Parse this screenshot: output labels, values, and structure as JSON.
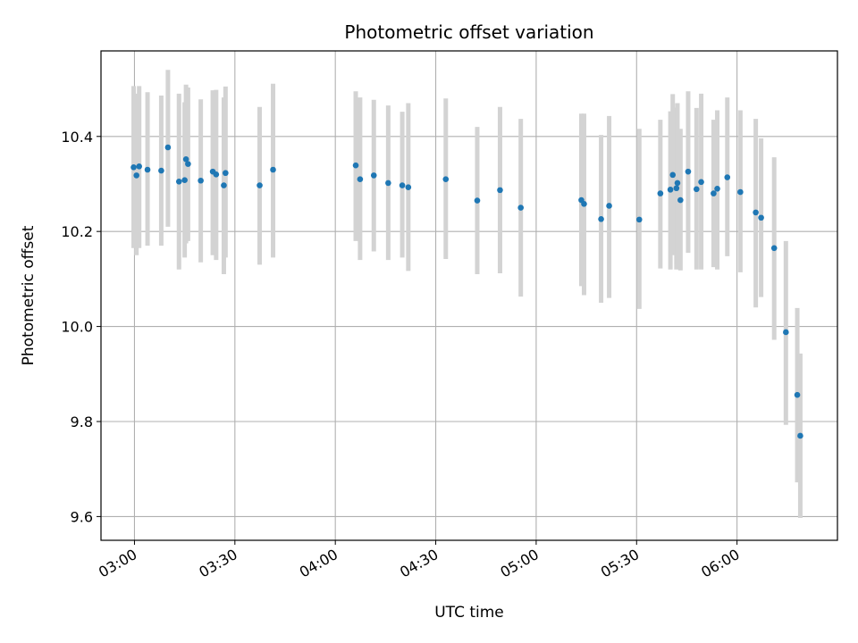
{
  "chart_data": {
    "type": "scatter",
    "title": "Photometric offset variation",
    "xlabel": "UTC time",
    "ylabel": "Photometric offset",
    "x_unit": "UTC time (HH:MM)",
    "xlim": [
      "02:50",
      "06:30"
    ],
    "ylim": [
      9.55,
      10.58
    ],
    "x_ticks": [
      "03:00",
      "03:30",
      "04:00",
      "04:30",
      "05:00",
      "05:30",
      "06:00"
    ],
    "y_ticks": [
      "9.6",
      "9.8",
      "10.0",
      "10.2",
      "10.4"
    ],
    "grid": true,
    "errorbar_color": "#d3d3d3",
    "marker_color": "#1f77b4",
    "series": [
      {
        "x": [
          "02:59:45",
          "03:00:36",
          "03:01:24",
          "03:03:54",
          "03:08:00",
          "03:10:00",
          "03:13:18",
          "03:15:00",
          "03:15:24",
          "03:16:00",
          "03:19:48",
          "03:23:24",
          "03:24:24",
          "03:26:42",
          "03:27:12",
          "03:37:24",
          "03:41:24",
          "04:06:06",
          "04:07:24",
          "04:11:30",
          "04:15:48",
          "04:20:00",
          "04:21:48",
          "04:33:00",
          "04:42:24",
          "04:49:12",
          "04:55:24",
          "05:13:30",
          "05:14:18",
          "05:19:24",
          "05:21:48",
          "05:30:48",
          "05:37:06",
          "05:40:06",
          "05:40:48",
          "05:41:54",
          "05:42:12",
          "05:43:06",
          "05:45:24",
          "05:47:54",
          "05:49:18",
          "05:53:00",
          "05:54:06",
          "05:57:06",
          "06:01:00",
          "06:05:36",
          "06:07:12",
          "06:11:06",
          "06:14:36",
          "06:18:00",
          "06:18:54"
        ],
        "y": [
          10.335,
          10.318,
          10.337,
          10.33,
          10.328,
          10.377,
          10.305,
          10.308,
          10.352,
          10.342,
          10.307,
          10.326,
          10.32,
          10.297,
          10.323,
          10.297,
          10.33,
          10.339,
          10.31,
          10.318,
          10.302,
          10.297,
          10.293,
          10.31,
          10.265,
          10.287,
          10.25,
          10.266,
          10.258,
          10.226,
          10.254,
          10.225,
          10.28,
          10.288,
          10.319,
          10.291,
          10.302,
          10.266,
          10.326,
          10.289,
          10.304,
          10.28,
          10.29,
          10.314,
          10.283,
          10.24,
          10.229,
          10.165,
          9.988,
          9.856,
          9.77
        ],
        "y_lower": [
          10.165,
          10.15,
          10.165,
          10.17,
          10.17,
          10.21,
          10.12,
          10.145,
          10.175,
          10.18,
          10.135,
          10.15,
          10.14,
          10.11,
          10.145,
          10.13,
          10.145,
          10.18,
          10.14,
          10.158,
          10.14,
          10.145,
          10.117,
          10.142,
          10.11,
          10.112,
          10.063,
          10.085,
          10.066,
          10.05,
          10.06,
          10.037,
          10.122,
          10.12,
          10.15,
          10.12,
          10.13,
          10.118,
          10.155,
          10.12,
          10.12,
          10.125,
          10.12,
          10.148,
          10.114,
          10.04,
          10.062,
          9.972,
          9.793,
          9.672,
          9.597
        ],
        "y_upper": [
          10.506,
          10.49,
          10.506,
          10.493,
          10.486,
          10.54,
          10.49,
          10.472,
          10.509,
          10.503,
          10.478,
          10.497,
          10.498,
          10.482,
          10.505,
          10.462,
          10.511,
          10.495,
          10.482,
          10.477,
          10.465,
          10.452,
          10.47,
          10.48,
          10.42,
          10.462,
          10.437,
          10.448,
          10.448,
          10.403,
          10.443,
          10.416,
          10.435,
          10.453,
          10.489,
          10.461,
          10.47,
          10.416,
          10.495,
          10.46,
          10.49,
          10.435,
          10.455,
          10.482,
          10.455,
          10.437,
          10.396,
          10.356,
          10.18,
          10.039,
          9.943
        ]
      }
    ]
  }
}
